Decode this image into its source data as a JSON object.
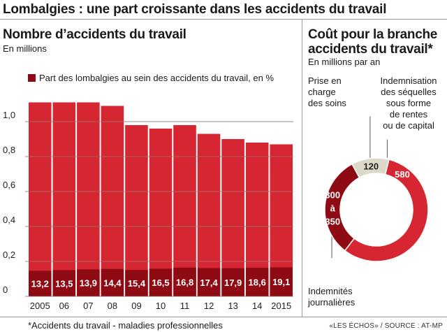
{
  "title": "Lombalgies : une part croissante dans les accidents du travail",
  "left_chart": {
    "heading": "Nombre d’accidents du travail",
    "units": "En millions",
    "legend_label": "Part des lombalgies au sein des accidents du travail, en %"
  },
  "right_chart": {
    "heading_line1": "Coût pour la branche",
    "heading_line2": "accidents du travail*",
    "units": "En millions par an",
    "annotations": {
      "prise_en_charge": [
        "Prise en",
        "charge",
        "des soins"
      ],
      "indemnisation": [
        "Indemnisation",
        "des séquelles",
        "sous forme",
        "de rentes",
        "ou de capital"
      ],
      "indemnites": [
        "Indemnités",
        "journalières"
      ]
    }
  },
  "footnote": "*Accidents du travail - maladies professionnelles",
  "source": "«LES ÉCHOS» / SOURCE : AT-MP",
  "colors": {
    "bar": "#d62631",
    "lombalgie": "#8f0b14",
    "donut_red": "#d62631",
    "donut_dark": "#8f0b14",
    "donut_beige": "#dcd9c9"
  },
  "chart_data": [
    {
      "type": "bar",
      "categories": [
        "2005",
        "06",
        "07",
        "08",
        "09",
        "10",
        "11",
        "12",
        "13",
        "14",
        "2015"
      ],
      "ylim": [
        0,
        1.2
      ],
      "yticks": [
        0,
        0.2,
        0.4,
        0.6,
        0.8,
        1.0
      ],
      "ytick_labels": [
        "0",
        "0,2",
        "0,4",
        "0,6",
        "0,8",
        "1,0"
      ],
      "series": [
        {
          "name": "Nombre d’accidents du travail",
          "values": [
            1.11,
            1.11,
            1.11,
            1.09,
            0.98,
            0.96,
            0.98,
            0.93,
            0.9,
            0.88,
            0.87
          ]
        },
        {
          "name": "Part des lombalgies au sein des accidents du travail, en %",
          "values": [
            13.2,
            13.5,
            13.9,
            14.4,
            15.4,
            16.5,
            16.8,
            17.4,
            17.9,
            18.6,
            19.1
          ]
        }
      ],
      "data_labels": [
        "13,2",
        "13,5",
        "13,9",
        "14,4",
        "15,4",
        "16,5",
        "16,8",
        "17,4",
        "17,9",
        "18,6",
        "19,1"
      ],
      "grid": true
    },
    {
      "type": "pie",
      "donut": true,
      "slices": [
        {
          "label": "Indemnisation des séquelles sous forme de rentes ou de capital",
          "value": 580,
          "display": "580"
        },
        {
          "label": "Indemnités journalières",
          "value": 325,
          "display": [
            "300",
            "à",
            "350"
          ]
        },
        {
          "label": "Prise en charge des soins",
          "value": 120,
          "display": "120"
        }
      ]
    }
  ]
}
